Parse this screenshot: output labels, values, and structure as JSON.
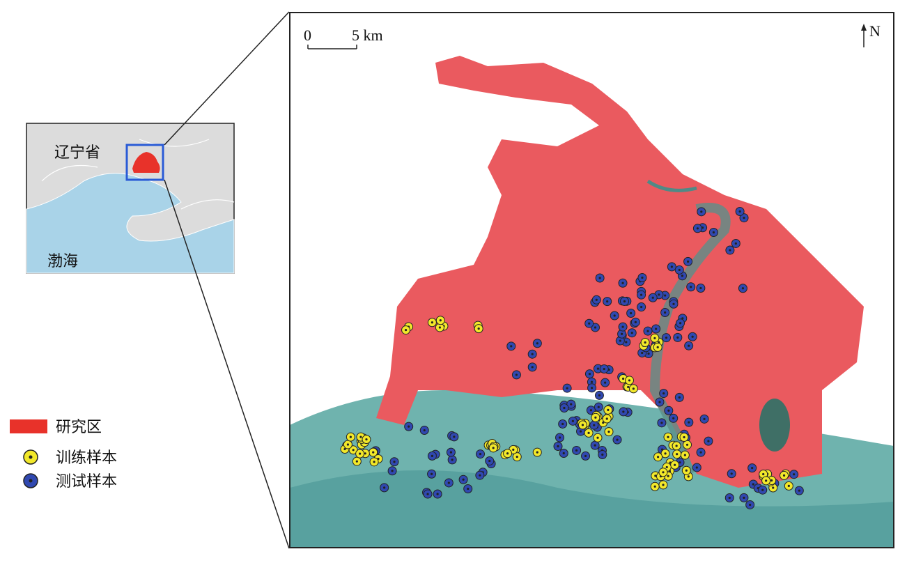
{
  "inset": {
    "province": "辽宁省",
    "sea": "渤海"
  },
  "scale_bar": {
    "start": "0",
    "end": "5 km"
  },
  "north": "N",
  "legend": {
    "items": [
      "研究区",
      "训练样本",
      "测试样本"
    ]
  }
}
